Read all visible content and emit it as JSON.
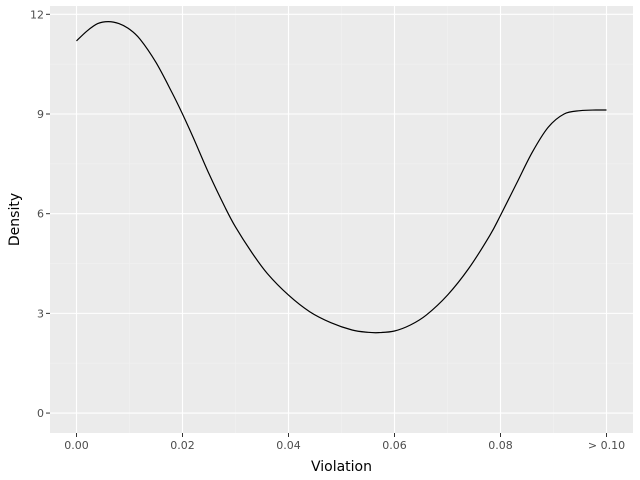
{
  "chart_data": {
    "type": "line",
    "title": "",
    "xlabel": "Violation",
    "ylabel": "Density",
    "xlim": [
      -0.005,
      0.105
    ],
    "ylim": [
      -0.6,
      12.25
    ],
    "x_ticks": [
      0.0,
      0.02,
      0.04,
      0.06,
      0.08,
      0.1
    ],
    "x_tick_labels": [
      "0.00",
      "0.02",
      "0.04",
      "0.06",
      "0.08",
      "> 0.10"
    ],
    "y_ticks": [
      0,
      3,
      6,
      9,
      12
    ],
    "y_tick_labels": [
      "0",
      "3",
      "6",
      "9",
      "12"
    ],
    "grid": true,
    "series": [
      {
        "name": "density",
        "color": "#000000",
        "x": [
          0.0,
          0.002,
          0.004,
          0.006,
          0.008,
          0.01,
          0.012,
          0.015,
          0.018,
          0.02,
          0.022,
          0.025,
          0.028,
          0.03,
          0.033,
          0.036,
          0.04,
          0.044,
          0.048,
          0.052,
          0.055,
          0.057,
          0.06,
          0.063,
          0.066,
          0.07,
          0.074,
          0.078,
          0.08,
          0.083,
          0.086,
          0.089,
          0.092,
          0.095,
          0.098,
          0.1
        ],
        "y": [
          11.2,
          11.5,
          11.72,
          11.78,
          11.72,
          11.55,
          11.25,
          10.55,
          9.65,
          9.0,
          8.3,
          7.2,
          6.2,
          5.6,
          4.85,
          4.2,
          3.55,
          3.05,
          2.72,
          2.5,
          2.43,
          2.42,
          2.47,
          2.65,
          2.95,
          3.55,
          4.35,
          5.35,
          5.95,
          6.9,
          7.85,
          8.6,
          9.0,
          9.1,
          9.12,
          9.12
        ]
      }
    ],
    "colors": {
      "panel_background": "#ebebeb",
      "grid_major": "#ffffff",
      "grid_minor": "#f2f2f2",
      "tick_text": "#4d4d4d",
      "tick_mark": "#333333",
      "line": "#000000"
    }
  }
}
